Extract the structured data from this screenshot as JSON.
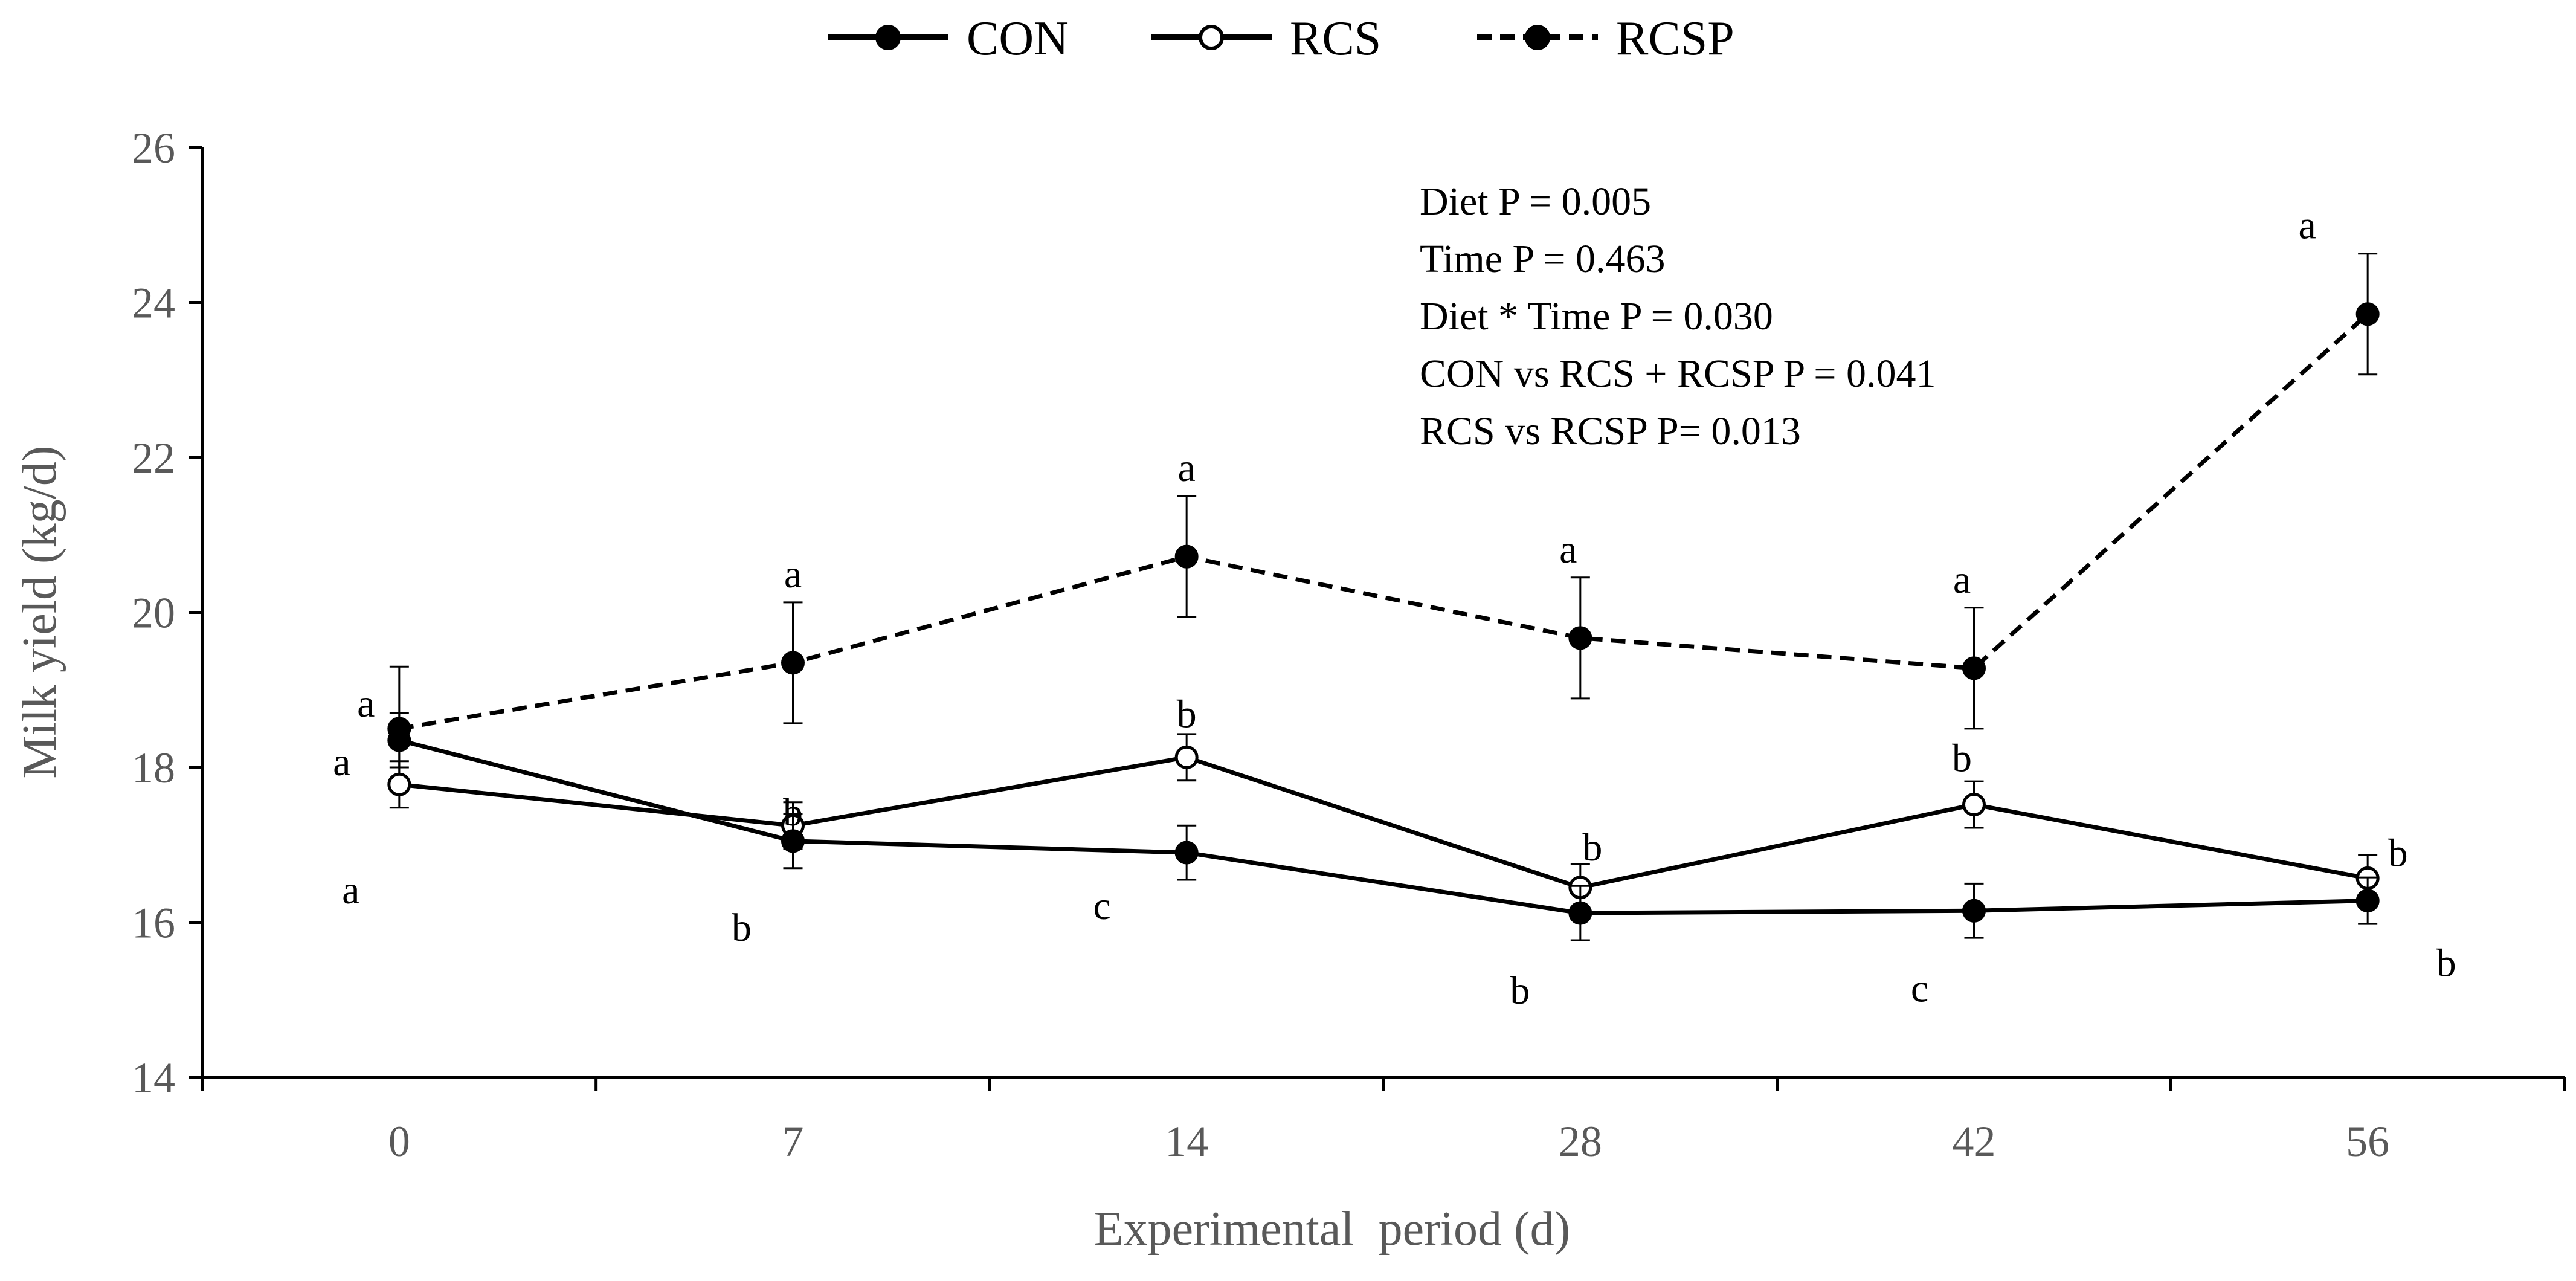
{
  "chart_data": {
    "type": "line",
    "title": "",
    "xlabel": "Experimental  period (d)",
    "ylabel": "Milk yield (kg/d)",
    "categories": [
      "0",
      "7",
      "14",
      "28",
      "42",
      "56"
    ],
    "ylim": [
      14,
      26
    ],
    "yticks": [
      "14",
      "16",
      "18",
      "20",
      "22",
      "24",
      "26"
    ],
    "grid": false,
    "legend_position": "top-center",
    "series": [
      {
        "name": "CON",
        "marker": "filled-circle",
        "line": "solid",
        "values": [
          18.35,
          17.05,
          16.9,
          16.12,
          16.15,
          16.28
        ],
        "errors": [
          0.35,
          0.35,
          0.35,
          0.35,
          0.35,
          0.3
        ],
        "labels": [
          "a",
          "b",
          "c",
          "b",
          "c",
          "b"
        ]
      },
      {
        "name": "RCS",
        "marker": "open-circle",
        "line": "solid",
        "values": [
          17.78,
          17.25,
          18.13,
          16.45,
          17.52,
          16.57
        ],
        "errors": [
          0.3,
          0.3,
          0.3,
          0.3,
          0.3,
          0.3
        ],
        "labels": [
          "a",
          "b",
          "b",
          "b",
          "b",
          "b"
        ]
      },
      {
        "name": "RCSP",
        "marker": "filled-circle",
        "line": "dashed",
        "values": [
          18.5,
          19.35,
          20.72,
          19.67,
          19.28,
          23.85
        ],
        "errors": [
          0.8,
          0.78,
          0.78,
          0.78,
          0.78,
          0.78
        ],
        "labels": [
          "a",
          "a",
          "a",
          "a",
          "a",
          "a"
        ]
      }
    ],
    "annotations": [
      "Diet P = 0.005",
      "Time P = 0.463",
      "Diet * Time P = 0.030",
      "CON vs RCS + RCSP P = 0.041",
      "RCS vs RCSP  P= 0.013"
    ]
  },
  "colors": {
    "line": "#000000",
    "axis": "#000000",
    "tick_text": "#595959",
    "open_marker_fill": "#ffffff"
  }
}
